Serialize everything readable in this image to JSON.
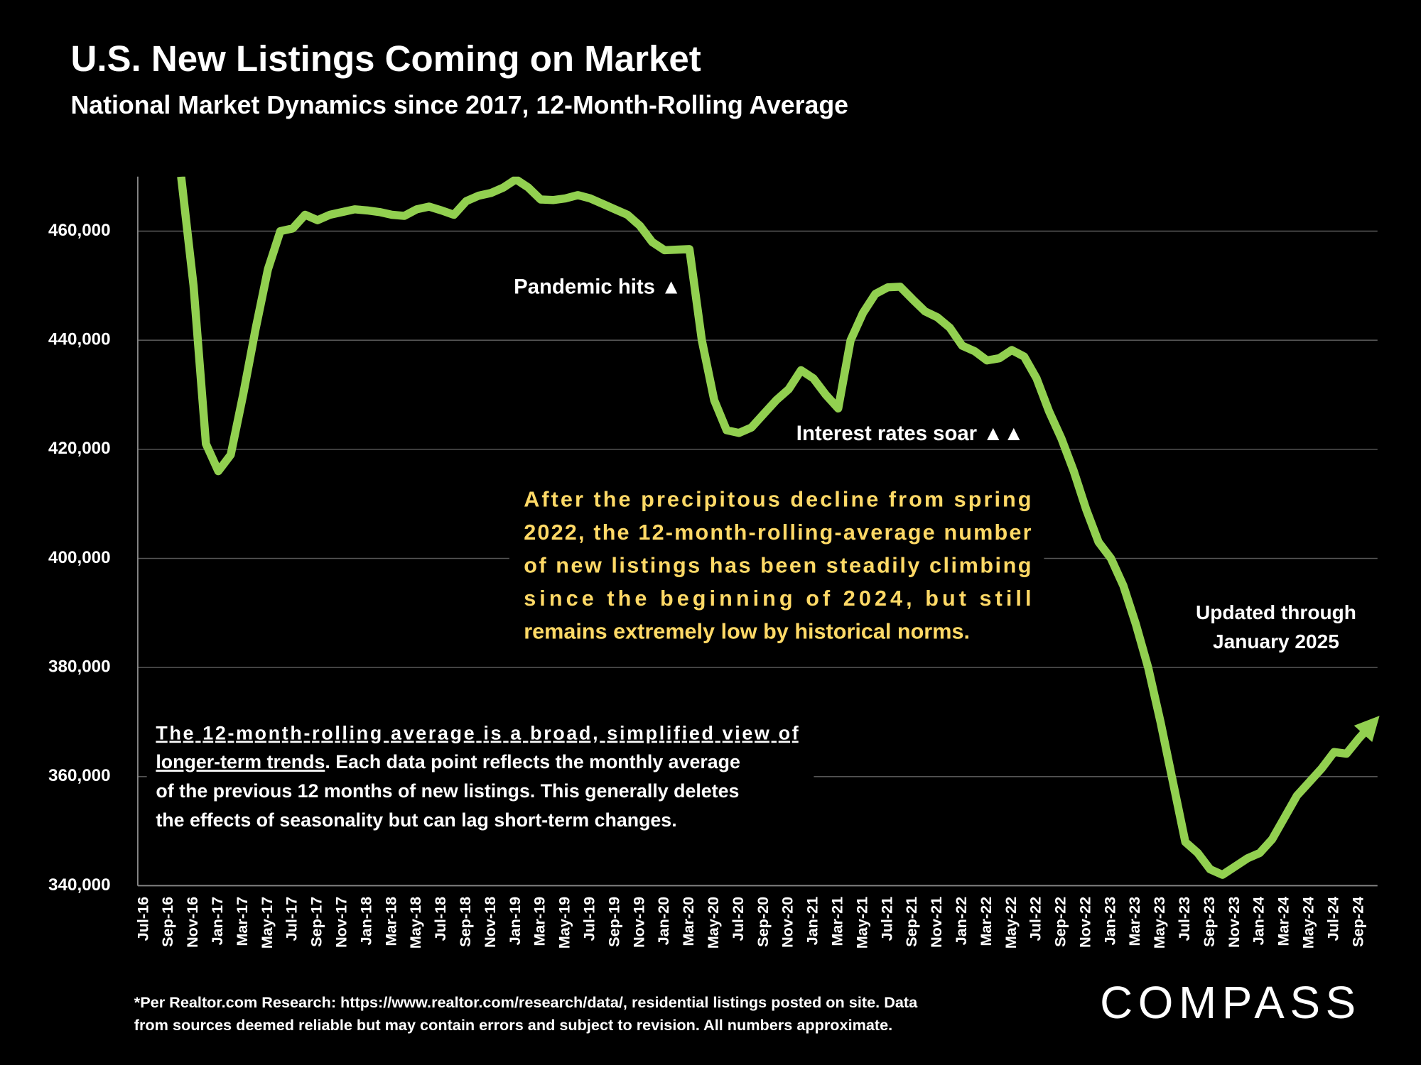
{
  "chart_data": {
    "type": "line",
    "title": "U.S. New Listings Coming on Market",
    "subtitle": "National Market Dynamics since 2017, 12-Month-Rolling Average",
    "categories": [
      "Jul-16",
      null,
      "Sep-16",
      null,
      "Nov-16",
      null,
      "Jan-17",
      null,
      "Mar-17",
      null,
      "May-17",
      null,
      "Jul-17",
      null,
      "Sep-17",
      null,
      "Nov-17",
      null,
      "Jan-18",
      null,
      "Mar-18",
      null,
      "May-18",
      null,
      "Jul-18",
      null,
      "Sep-18",
      null,
      "Nov-18",
      null,
      "Jan-19",
      null,
      "Mar-19",
      null,
      "May-19",
      null,
      "Jul-19",
      null,
      "Sep-19",
      null,
      "Nov-19",
      null,
      "Jan-20",
      null,
      "Mar-20",
      null,
      "May-20",
      null,
      "Jul-20",
      null,
      "Sep-20",
      null,
      "Nov-20",
      null,
      "Jan-21",
      null,
      "Mar-21",
      null,
      "May-21",
      null,
      "Jul-21",
      null,
      "Sep-21",
      null,
      "Nov-21",
      null,
      "Jan-22",
      null,
      "Mar-22",
      null,
      "May-22",
      null,
      "Jul-22",
      null,
      "Sep-22",
      null,
      "Nov-22",
      null,
      "Jan-23",
      null,
      "Mar-23",
      null,
      "May-23",
      null,
      "Jul-23",
      null,
      "Sep-23",
      null,
      "Nov-23",
      null,
      "Jan-24",
      null,
      "Mar-24",
      null,
      "May-24",
      null,
      "Jul-24",
      null,
      "Sep-24",
      null
    ],
    "values": [
      null,
      null,
      null,
      470000,
      450000,
      421000,
      416000,
      419000,
      430000,
      442000,
      453000,
      460000,
      460500,
      463000,
      462000,
      463000,
      463500,
      464000,
      463800,
      463500,
      463000,
      462800,
      464000,
      464500,
      463800,
      463000,
      465500,
      466500,
      467000,
      468000,
      469500,
      468000,
      465800,
      465700,
      466000,
      466600,
      466000,
      465000,
      464000,
      463000,
      461000,
      458000,
      456500,
      456600,
      456700,
      440000,
      429000,
      423500,
      423000,
      424000,
      426500,
      429000,
      431000,
      434500,
      433000,
      430000,
      427500,
      440000,
      445000,
      448500,
      449700,
      449800,
      447500,
      445300,
      444200,
      442300,
      439000,
      438000,
      436300,
      436700,
      438200,
      437000,
      433000,
      427000,
      422000,
      416000,
      409000,
      403000,
      400000,
      395000,
      388000,
      380000,
      370000,
      359000,
      348000,
      346000,
      343000,
      342000,
      343500,
      345000,
      346000,
      348500,
      352500,
      356500,
      359000,
      361500,
      364500,
      364200,
      367000,
      369500
    ],
    "color": "#92d050",
    "ylim": [
      340000,
      470000
    ],
    "yticks": [
      {
        "value": 340000,
        "label": "340,000"
      },
      {
        "value": 360000,
        "label": "360,000"
      },
      {
        "value": 380000,
        "label": "380,000"
      },
      {
        "value": 400000,
        "label": "400,000"
      },
      {
        "value": 420000,
        "label": "420,000"
      },
      {
        "value": 440000,
        "label": "440,000"
      },
      {
        "value": 460000,
        "label": "460,000"
      }
    ],
    "grid": true,
    "annotations": [
      "Pandemic hits ▲",
      "Interest rates soar ▲▲"
    ],
    "updated_note": [
      "Updated through",
      "January 2025"
    ],
    "callout_lines": [
      "After the precipitous decline from spring",
      "2022, the 12-month-rolling-average number",
      "of new listings has been steadily climbing",
      "since the beginning of 2024, but still",
      "remains extremely low by historical norms."
    ],
    "callout_color": "#ffd966",
    "note_underlined": [
      "The 12-month-rolling average is a broad, simplified view of",
      "longer-term trends"
    ],
    "note_lines": [
      ". Each data point reflects the monthly average",
      "of the previous 12 months of new listings. This generally deletes",
      "the effects of seasonality but can lag short-term changes."
    ],
    "footnote_lines": [
      "*Per Realtor.com Research:  https://www.realtor.com/research/data/, residential listings posted on site. Data",
      "from sources deemed reliable but may contain errors and subject to revision. All numbers approximate."
    ],
    "logo": "COMPASS"
  }
}
